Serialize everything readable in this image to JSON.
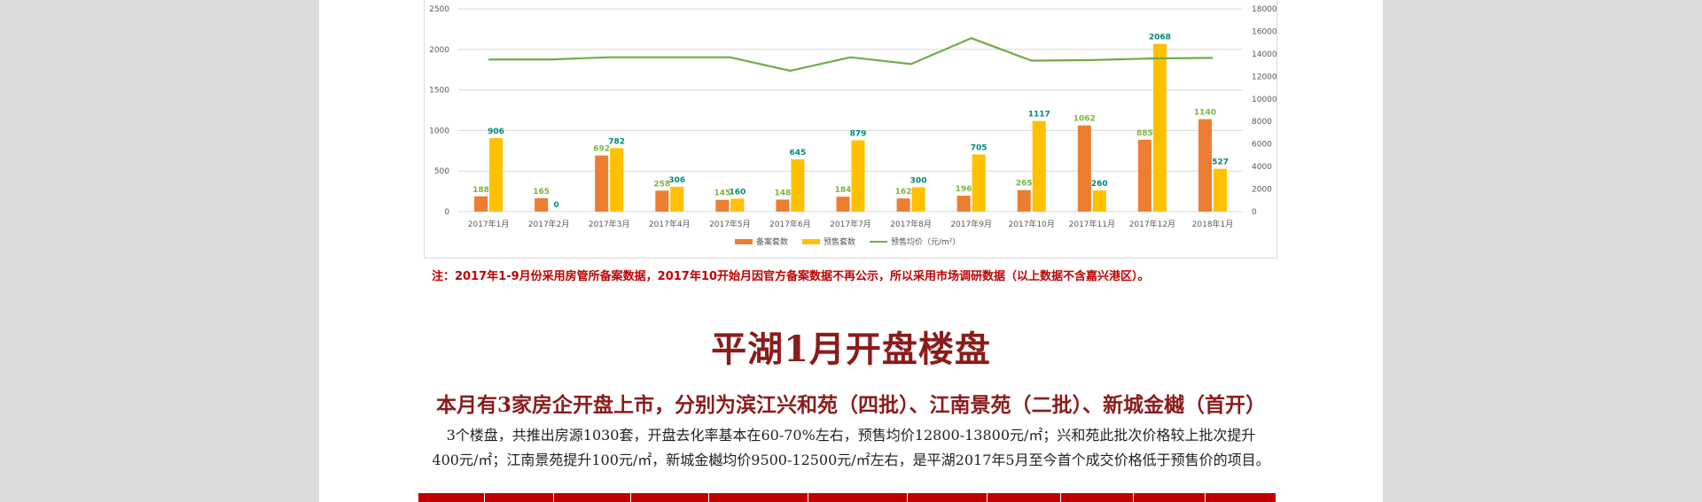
{
  "chart_data": {
    "type": "bar",
    "categories": [
      "2017年1月",
      "2017年2月",
      "2017年3月",
      "2017年4月",
      "2017年5月",
      "2017年6月",
      "2017年7月",
      "2017年8月",
      "2017年9月",
      "2017年10月",
      "2017年11月",
      "2017年12月",
      "2018年1月"
    ],
    "series": [
      {
        "name": "备案套数",
        "type": "bar",
        "axis": "left",
        "color": "#ed7d31",
        "values": [
          188,
          165,
          692,
          258,
          145,
          148,
          184,
          162,
          196,
          265,
          1062,
          885,
          1140
        ],
        "labels": [
          "188",
          "165",
          "692",
          "258",
          "145",
          "148",
          "184",
          "162",
          "196",
          "265",
          "1062",
          "885",
          "1140"
        ]
      },
      {
        "name": "预售套数",
        "type": "bar",
        "axis": "left",
        "color": "#ffc000",
        "values": [
          906,
          0,
          782,
          306,
          160,
          645,
          879,
          300,
          705,
          1117,
          260,
          2068,
          527
        ],
        "labels": [
          "906",
          "0",
          "782",
          "306",
          "160",
          "645",
          "879",
          "300",
          "705",
          "1117",
          "260",
          "2068",
          "527"
        ]
      },
      {
        "name": "预售均价（元/m²）",
        "type": "line",
        "axis": "right",
        "color": "#70ad47",
        "values": [
          13500,
          13500,
          13700,
          13700,
          13700,
          12500,
          13700,
          13100,
          15400,
          13400,
          13450,
          13600,
          13650
        ]
      }
    ],
    "ylim": [
      0,
      2500
    ],
    "y_ticks": [
      "0",
      "500",
      "1000",
      "1500",
      "2000",
      "2500"
    ],
    "y2lim": [
      0,
      18000
    ],
    "y2_ticks": [
      "0",
      "2000",
      "4000",
      "6000",
      "8000",
      "10000",
      "12000",
      "14000",
      "16000",
      "18000"
    ],
    "grid": true,
    "legend": "bottom"
  },
  "note": "注：2017年1-9月份采用房管所备案数据，2017年10开始月因官方备案数据不再公示，所以采用市场调研数据（以上数据不含嘉兴港区）。",
  "section_title": "平湖1月开盘楼盘",
  "subtitle": "本月有3家房企开盘上市，分别为滨江兴和苑（四批）、江南景苑（二批）、新城金樾（首开）",
  "description": {
    "line1": "3个楼盘，共推出房源1030套，开盘去化率基本在60-70%左右，预售均价12800-13800元/㎡；兴和苑此批次价格较上批次提升",
    "line2": "400元/㎡；江南景苑提升100元/㎡，新城金樾均价9500-12500元/㎡左右，是平湖2017年5月至今首个成交价格低于预售价的项目。"
  },
  "colors": {
    "title": "#8b1c1c",
    "note": "#c00000",
    "table_header": "#c00000"
  }
}
